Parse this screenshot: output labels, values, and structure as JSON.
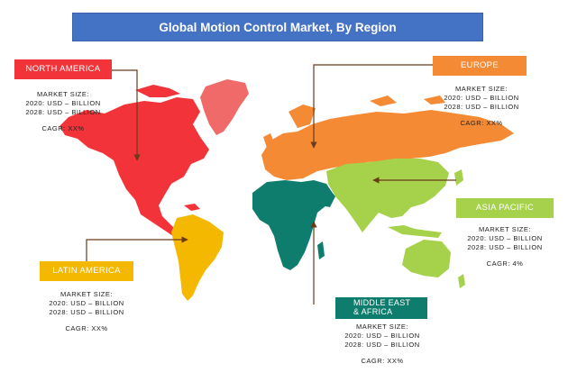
{
  "title": "Global Motion Control Market, By Region",
  "colors": {
    "title_bg": "#4472c4",
    "north_america": "#f2343a",
    "europe": "#f58a34",
    "asia_pacific": "#a6d14a",
    "latin_america": "#f5b800",
    "middle_east_africa": "#0f7d6e",
    "greenland": "#f06a6a",
    "arrow": "#6b3a1a"
  },
  "regions": {
    "north_america": {
      "label": "NORTH AMERICA",
      "market_size_label": "MARKET SIZE:",
      "size_2020": "2020: USD – BILLION",
      "size_2028": "2028: USD – BILLION",
      "cagr": "CAGR: XX%"
    },
    "europe": {
      "label": "EUROPE",
      "market_size_label": "MARKET SIZE:",
      "size_2020": "2020: USD – BILLION",
      "size_2028": "2028: USD – BILLION",
      "cagr": "CAGR: XX%"
    },
    "asia_pacific": {
      "label": "ASIA PACIFIC",
      "market_size_label": "MARKET SIZE:",
      "size_2020": "2020: USD – BILLION",
      "size_2028": "2028: USD – BILLION",
      "cagr": "CAGR: 4%"
    },
    "latin_america": {
      "label": "LATIN AMERICA",
      "market_size_label": "MARKET SIZE:",
      "size_2020": "2020: USD – BILLION",
      "size_2028": "2028: USD – BILLION",
      "cagr": "CAGR: XX%"
    },
    "middle_east_africa": {
      "label_line1": "MIDDLE EAST",
      "label_line2": "& AFRICA",
      "market_size_label": "MARKET SIZE:",
      "size_2020": "2020: USD – BILLION",
      "size_2028": "2028: USD – BILLION",
      "cagr": "CAGR: XX%"
    }
  }
}
